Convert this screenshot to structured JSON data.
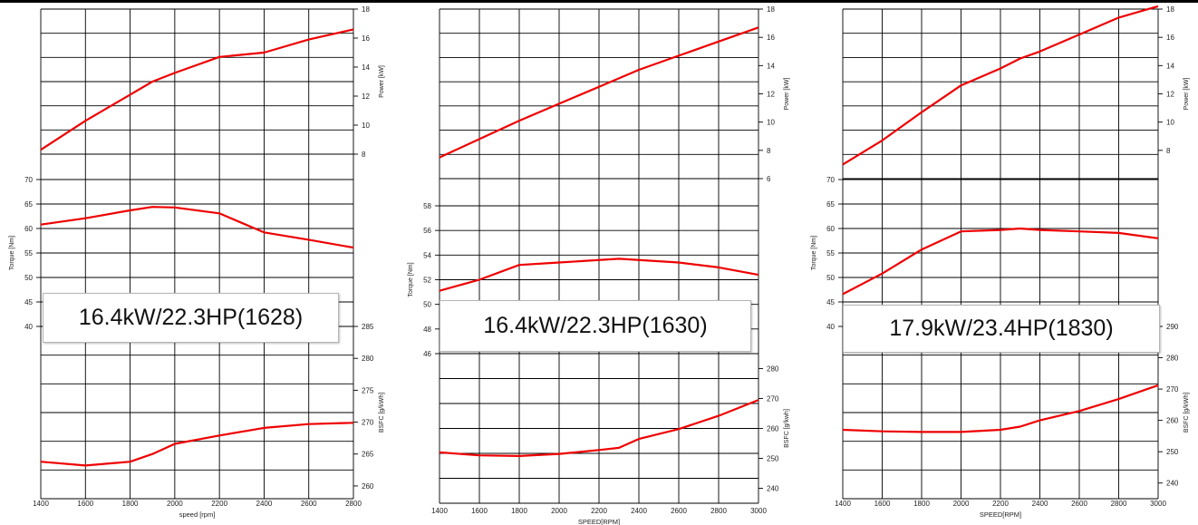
{
  "colors": {
    "curve": "#ee0000",
    "grid": "#000000",
    "text": "#222222"
  },
  "chart_data": [
    {
      "type": "line",
      "caption": "16.4kW/22.3HP(1628)",
      "xlabel": "speed [rpm]",
      "xlim": [
        1400,
        2800
      ],
      "xticks": [
        1400,
        1600,
        1800,
        2000,
        2200,
        2400,
        2600,
        2800
      ],
      "grid": true,
      "panels": [
        {
          "name": "power",
          "axis_side": "right",
          "ylabel": "Power [kW]",
          "ylim": [
            8,
            18
          ],
          "yticks": [
            8,
            10,
            12,
            14,
            16,
            18
          ],
          "x": [
            1400,
            1600,
            1800,
            1900,
            2000,
            2200,
            2400,
            2600,
            2800
          ],
          "y": [
            8.3,
            10.3,
            12.1,
            13.0,
            13.6,
            14.7,
            15.0,
            15.9,
            16.6
          ]
        },
        {
          "name": "torque",
          "axis_side": "left",
          "ylabel": "Torque [Nm]",
          "ylim": [
            40,
            70
          ],
          "yticks": [
            40,
            45,
            50,
            55,
            60,
            65,
            70
          ],
          "x": [
            1400,
            1600,
            1800,
            1900,
            2000,
            2200,
            2400,
            2600,
            2800
          ],
          "y": [
            60.8,
            62.1,
            63.7,
            64.4,
            64.3,
            63.1,
            59.2,
            57.7,
            56.1
          ]
        },
        {
          "name": "bsfc",
          "axis_side": "right",
          "ylabel": "BSFC [g/kWh]",
          "ylim": [
            258,
            285
          ],
          "yticks": [
            260,
            265,
            270,
            275,
            280,
            285
          ],
          "x": [
            1400,
            1600,
            1800,
            1900,
            2000,
            2200,
            2400,
            2600,
            2800
          ],
          "y": [
            263.8,
            263.2,
            263.8,
            265.0,
            266.6,
            267.9,
            269.1,
            269.7,
            269.9
          ]
        }
      ]
    },
    {
      "type": "line",
      "caption": "16.4kW/22.3HP(1630)",
      "xlabel": "SPEED[RPM]",
      "xlim": [
        1400,
        3000
      ],
      "xticks": [
        1400,
        1600,
        1800,
        2000,
        2200,
        2400,
        2600,
        2800,
        3000
      ],
      "grid": true,
      "panels": [
        {
          "name": "power",
          "axis_side": "right",
          "ylabel": "Power [kW]",
          "ylim": [
            6,
            18
          ],
          "yticks": [
            6,
            8,
            10,
            12,
            14,
            16,
            18
          ],
          "x": [
            1400,
            1600,
            1800,
            2000,
            2200,
            2400,
            2600,
            2800,
            3000
          ],
          "y": [
            7.5,
            8.8,
            10.1,
            11.3,
            12.5,
            13.7,
            14.7,
            15.7,
            16.7
          ]
        },
        {
          "name": "torque",
          "axis_side": "left",
          "ylabel": "Torque [Nm]",
          "ylim": [
            46,
            58
          ],
          "yticks": [
            46,
            48,
            50,
            52,
            54,
            56,
            58
          ],
          "x": [
            1400,
            1600,
            1800,
            2000,
            2300,
            2600,
            2800,
            3000
          ],
          "y": [
            51.1,
            52.0,
            53.2,
            53.4,
            53.7,
            53.4,
            53.0,
            52.4
          ]
        },
        {
          "name": "bsfc",
          "axis_side": "right",
          "ylabel": "BSFC [g/kwh]",
          "ylim": [
            235,
            285
          ],
          "yticks": [
            240,
            250,
            260,
            270,
            280
          ],
          "x": [
            1400,
            1600,
            1800,
            2000,
            2200,
            2300,
            2400,
            2600,
            2800,
            3000
          ],
          "y": [
            252.0,
            251.0,
            250.8,
            251.5,
            252.8,
            253.5,
            256.5,
            259.8,
            264.2,
            269.5
          ]
        }
      ]
    },
    {
      "type": "line",
      "caption": "17.9kW/23.4HP(1830)",
      "xlabel": "SPEED[RPM]",
      "xlim": [
        1400,
        3000
      ],
      "xticks": [
        1400,
        1600,
        1800,
        2000,
        2200,
        2400,
        2600,
        2800,
        3000
      ],
      "grid": true,
      "panels": [
        {
          "name": "power",
          "axis_side": "right",
          "ylabel": "Power [kW]",
          "ylim": [
            6,
            18
          ],
          "yticks": [
            8,
            10,
            12,
            14,
            16,
            18
          ],
          "x": [
            1400,
            1600,
            1800,
            2000,
            2200,
            2300,
            2400,
            2600,
            2800,
            3000
          ],
          "y": [
            7.0,
            8.7,
            10.7,
            12.6,
            13.8,
            14.5,
            15.0,
            16.2,
            17.4,
            18.2
          ]
        },
        {
          "name": "torque",
          "axis_side": "left",
          "ylabel": "Torque [Nm]",
          "ylim": [
            40,
            70
          ],
          "yticks": [
            40,
            45,
            50,
            55,
            60,
            65,
            70
          ],
          "x": [
            1400,
            1600,
            1800,
            2000,
            2200,
            2300,
            2400,
            2600,
            2800,
            3000
          ],
          "y": [
            46.6,
            50.8,
            55.7,
            59.4,
            59.7,
            60.0,
            59.7,
            59.4,
            59.1,
            58.0
          ]
        },
        {
          "name": "bsfc",
          "axis_side": "right",
          "ylabel": "BSFC [g/kWh]",
          "ylim": [
            235,
            290
          ],
          "yticks": [
            240,
            250,
            260,
            270,
            280,
            290
          ],
          "x": [
            1400,
            1600,
            1800,
            2000,
            2200,
            2300,
            2400,
            2600,
            2800,
            3000
          ],
          "y": [
            257.0,
            256.5,
            256.3,
            256.3,
            257.0,
            258.0,
            260.0,
            263.0,
            266.8,
            271.2
          ]
        }
      ]
    }
  ]
}
